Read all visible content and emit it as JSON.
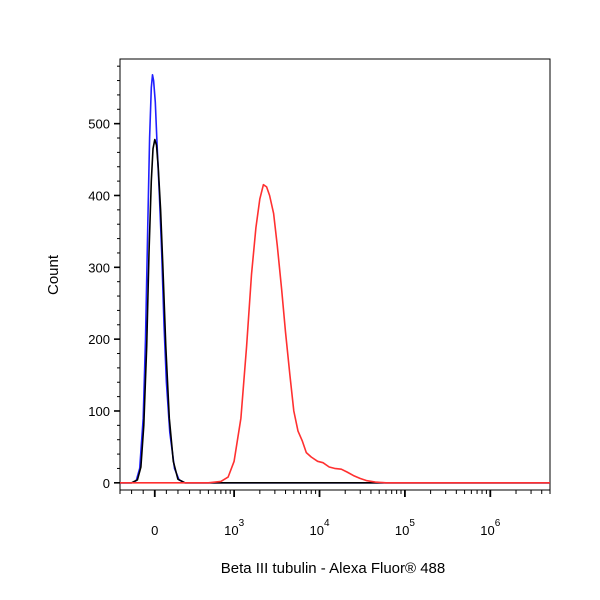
{
  "chart_data": {
    "type": "line",
    "title": "",
    "xlabel": "Beta III tubulin - Alexa Fluor® 488",
    "ylabel": "Count",
    "x_scale": "biexponential",
    "xlim": [
      -300,
      5000000
    ],
    "ylim": [
      -10,
      590
    ],
    "grid": false,
    "legend": "none",
    "y_ticks": [
      {
        "value": 0,
        "label": "0"
      },
      {
        "value": 100,
        "label": "100"
      },
      {
        "value": 200,
        "label": "200"
      },
      {
        "value": 300,
        "label": "300"
      },
      {
        "value": 400,
        "label": "400"
      },
      {
        "value": 500,
        "label": "500"
      }
    ],
    "x_ticks": [
      {
        "value": 0,
        "base": "0",
        "exp": ""
      },
      {
        "value": 1000,
        "base": "10",
        "exp": "3"
      },
      {
        "value": 10000,
        "base": "10",
        "exp": "4"
      },
      {
        "value": 100000,
        "base": "10",
        "exp": "5"
      },
      {
        "value": 1000000,
        "base": "10",
        "exp": "6"
      }
    ],
    "series": [
      {
        "color": "#2020ff",
        "points": [
          [
            -300,
            0
          ],
          [
            -200,
            0
          ],
          [
            -160,
            3
          ],
          [
            -130,
            20
          ],
          [
            -100,
            90
          ],
          [
            -80,
            200
          ],
          [
            -60,
            360
          ],
          [
            -45,
            480
          ],
          [
            -30,
            550
          ],
          [
            -20,
            568
          ],
          [
            -10,
            560
          ],
          [
            5,
            530
          ],
          [
            20,
            470
          ],
          [
            40,
            400
          ],
          [
            60,
            320
          ],
          [
            80,
            220
          ],
          [
            100,
            140
          ],
          [
            130,
            70
          ],
          [
            170,
            20
          ],
          [
            210,
            4
          ],
          [
            260,
            0
          ],
          [
            320,
            0
          ],
          [
            1000,
            0
          ],
          [
            10000,
            0
          ],
          [
            100000,
            0
          ],
          [
            1000000,
            0
          ],
          [
            5000000,
            0
          ]
        ]
      },
      {
        "color": "#000000",
        "points": [
          [
            -300,
            0
          ],
          [
            -200,
            0
          ],
          [
            -150,
            4
          ],
          [
            -120,
            22
          ],
          [
            -95,
            80
          ],
          [
            -70,
            190
          ],
          [
            -50,
            320
          ],
          [
            -30,
            420
          ],
          [
            -15,
            465
          ],
          [
            0,
            478
          ],
          [
            15,
            470
          ],
          [
            30,
            440
          ],
          [
            50,
            380
          ],
          [
            70,
            300
          ],
          [
            95,
            190
          ],
          [
            125,
            90
          ],
          [
            160,
            30
          ],
          [
            200,
            5
          ],
          [
            260,
            0
          ],
          [
            330,
            0
          ],
          [
            1000,
            0
          ],
          [
            10000,
            0
          ],
          [
            100000,
            0
          ],
          [
            1000000,
            0
          ],
          [
            5000000,
            0
          ]
        ]
      },
      {
        "color": "#ff3030",
        "points": [
          [
            -300,
            0
          ],
          [
            100,
            0
          ],
          [
            300,
            0
          ],
          [
            500,
            0
          ],
          [
            700,
            2
          ],
          [
            850,
            8
          ],
          [
            1000,
            30
          ],
          [
            1200,
            90
          ],
          [
            1400,
            190
          ],
          [
            1600,
            290
          ],
          [
            1800,
            355
          ],
          [
            2000,
            395
          ],
          [
            2200,
            415
          ],
          [
            2400,
            412
          ],
          [
            2600,
            400
          ],
          [
            2900,
            375
          ],
          [
            3200,
            330
          ],
          [
            3600,
            270
          ],
          [
            4000,
            210
          ],
          [
            4500,
            150
          ],
          [
            5000,
            100
          ],
          [
            5600,
            72
          ],
          [
            6300,
            58
          ],
          [
            7000,
            42
          ],
          [
            8000,
            36
          ],
          [
            9500,
            30
          ],
          [
            11000,
            28
          ],
          [
            13000,
            22
          ],
          [
            15000,
            20
          ],
          [
            18000,
            19
          ],
          [
            21000,
            15
          ],
          [
            25000,
            10
          ],
          [
            30000,
            6
          ],
          [
            36000,
            3
          ],
          [
            45000,
            1
          ],
          [
            60000,
            0
          ],
          [
            100000,
            0
          ],
          [
            1000000,
            0
          ],
          [
            5000000,
            0
          ]
        ]
      }
    ]
  }
}
